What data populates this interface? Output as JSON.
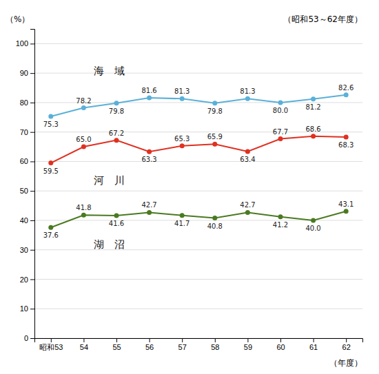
{
  "chart_data": {
    "type": "line",
    "subtitle": "（昭和53～62年度）",
    "y_label": "（%）",
    "x_label": "（年度）",
    "categories": [
      "昭和53",
      "54",
      "55",
      "56",
      "57",
      "58",
      "59",
      "60",
      "61",
      "62"
    ],
    "series": [
      {
        "name": "海　域",
        "color": "#5ab0d8",
        "values": [
          75.3,
          78.2,
          79.8,
          81.6,
          81.3,
          79.8,
          81.3,
          80.0,
          81.2,
          82.6
        ],
        "value_labels": [
          "75.3",
          "78.2",
          "79.8",
          "81.6",
          "81.3",
          "79.8",
          "81.3",
          "80.0",
          "81.2",
          "82.6"
        ]
      },
      {
        "name": "河　川",
        "color": "#e03020",
        "values": [
          59.5,
          65.0,
          67.2,
          63.3,
          65.3,
          65.9,
          63.4,
          67.7,
          68.6,
          68.3
        ],
        "value_labels": [
          "59.5",
          "65.0",
          "67.2",
          "63.3",
          "65.3",
          "65.9",
          "63.4",
          "67.7",
          "68.6",
          "68.3"
        ]
      },
      {
        "name": "湖　沼",
        "color": "#4a7a20",
        "values": [
          37.6,
          41.8,
          41.6,
          42.7,
          41.7,
          40.8,
          42.7,
          41.2,
          40.0,
          43.1
        ],
        "value_labels": [
          "37.6",
          "41.8",
          "41.6",
          "42.7",
          "41.7",
          "40.8",
          "42.7",
          "41.2",
          "40.0",
          "43.1"
        ]
      }
    ],
    "ylim": [
      0,
      105
    ],
    "yticks": [
      0,
      10,
      20,
      30,
      40,
      50,
      60,
      70,
      80,
      90,
      100
    ],
    "grid": true,
    "data_labels": true,
    "marker": "circle"
  }
}
